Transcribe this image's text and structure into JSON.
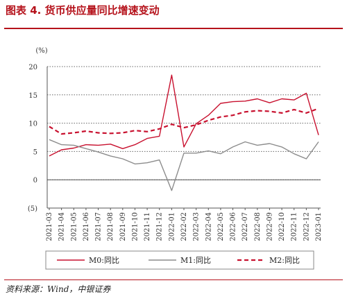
{
  "header": {
    "title": "图表 4. 货币供应量同比增速变动"
  },
  "footer": {
    "source": "资料来源：Wind，中银证券"
  },
  "colors": {
    "accent": "#b5121b",
    "m0": "#c8102e",
    "m1": "#8c8c8c",
    "m2": "#c8102e"
  },
  "chart_data": {
    "type": "line",
    "unit_label": "(%)",
    "y_ticks": [
      "20",
      "15",
      "10",
      "5",
      "0",
      "(5)"
    ],
    "y_tick_values": [
      20,
      15,
      10,
      5,
      0,
      -5
    ],
    "ylim": [
      -5,
      20
    ],
    "grid": "horizontal dotted",
    "legend_position": "bottom",
    "x": [
      "2021-03",
      "2021-04",
      "2021-05",
      "2021-06",
      "2021-07",
      "2021-08",
      "2021-09",
      "2021-10",
      "2021-11",
      "2021-12",
      "2022-01",
      "2022-02",
      "2022-03",
      "2022-04",
      "2022-05",
      "2022-06",
      "2022-07",
      "2022-08",
      "2022-09",
      "2022-10",
      "2022-11",
      "2022-12",
      "2023-01"
    ],
    "series": [
      {
        "name": "M0:同比",
        "style": "solid",
        "color": "#c8102e",
        "values": [
          4.2,
          5.3,
          5.6,
          6.2,
          6.1,
          6.3,
          5.5,
          6.2,
          7.3,
          7.7,
          18.5,
          5.8,
          9.9,
          11.4,
          13.5,
          13.8,
          13.9,
          14.3,
          13.6,
          14.3,
          14.1,
          15.3,
          7.9
        ]
      },
      {
        "name": "M1:同比",
        "style": "solid",
        "color": "#8c8c8c",
        "values": [
          7.1,
          6.2,
          6.1,
          5.5,
          4.9,
          4.2,
          3.7,
          2.8,
          3.0,
          3.5,
          -1.9,
          4.7,
          4.7,
          5.1,
          4.6,
          5.8,
          6.7,
          6.1,
          6.4,
          5.8,
          4.6,
          3.7,
          6.7
        ]
      },
      {
        "name": "M2:同比",
        "style": "dashed",
        "color": "#c8102e",
        "values": [
          9.4,
          8.1,
          8.3,
          8.6,
          8.3,
          8.2,
          8.3,
          8.7,
          8.5,
          9.0,
          9.8,
          9.2,
          9.7,
          10.5,
          11.1,
          11.4,
          12.0,
          12.2,
          12.1,
          11.8,
          12.4,
          11.8,
          12.6
        ]
      }
    ]
  }
}
